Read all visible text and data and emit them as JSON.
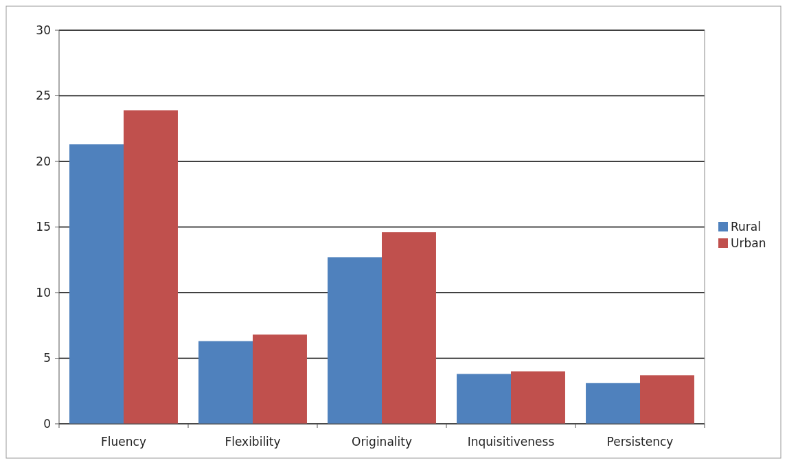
{
  "chart_data": {
    "type": "bar",
    "categories": [
      "Fluency",
      "Flexibility",
      "Originality",
      "Inquisitiveness",
      "Persistency"
    ],
    "series": [
      {
        "name": "Rural",
        "color": "#4f81bd",
        "values": [
          21.3,
          6.3,
          12.7,
          3.8,
          3.1
        ]
      },
      {
        "name": "Urban",
        "color": "#c0504d",
        "values": [
          23.9,
          6.8,
          14.6,
          4.0,
          3.7
        ]
      }
    ],
    "ylim": [
      0,
      30
    ],
    "yticks": [
      0,
      5,
      10,
      15,
      20,
      25,
      30
    ],
    "grid": "y",
    "legend": "right"
  }
}
